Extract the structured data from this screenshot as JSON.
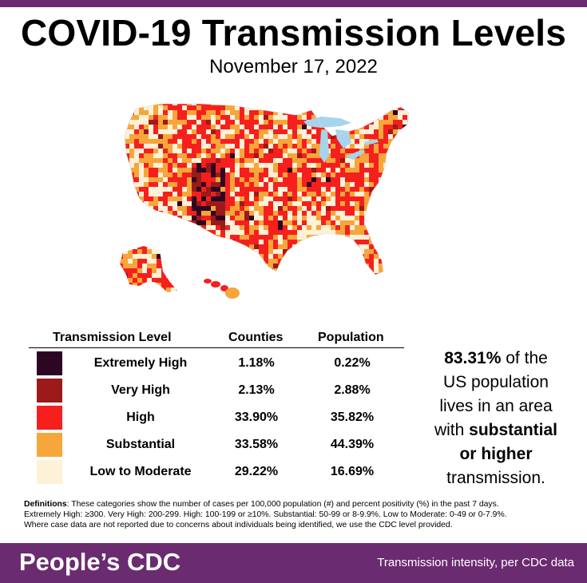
{
  "header": {
    "title": "COVID-19 Transmission Levels",
    "date": "November 17, 2022"
  },
  "colors": {
    "brand_purple": "#6a2b70",
    "extremely_high": "#2d0624",
    "very_high": "#9c1a1a",
    "high": "#f5201e",
    "substantial": "#f6a63a",
    "low_to_moderate": "#fdf1d7",
    "great_lakes": "#a6d4ec"
  },
  "legend": {
    "col_level": "Transmission Level",
    "col_counties": "Counties",
    "col_population": "Population",
    "rows": [
      {
        "level": "Extremely High",
        "counties": "1.18%",
        "population": "0.22%",
        "color": "#2d0624"
      },
      {
        "level": "Very High",
        "counties": "2.13%",
        "population": "2.88%",
        "color": "#9c1a1a"
      },
      {
        "level": "High",
        "counties": "33.90%",
        "population": "35.82%",
        "color": "#f5201e"
      },
      {
        "level": "Substantial",
        "counties": "33.58%",
        "population": "44.39%",
        "color": "#f6a63a"
      },
      {
        "level": "Low to Moderate",
        "counties": "29.22%",
        "population": "16.69%",
        "color": "#fdf1d7"
      }
    ]
  },
  "callout": {
    "percent": "83.31%",
    "line1_rest": " of the",
    "line2": "US population",
    "line3": "lives in an area",
    "line4_pre": "with ",
    "line4_bold": "substantial",
    "line5_bold": "or higher",
    "line6": "transmission."
  },
  "definitions": {
    "label": "Definitions",
    "text1": ": These categories show the number of cases per 100,000 population (#) and percent positivity (%) in the past 7 days.",
    "text2": "Extremely High: ≥300. Very High: 200-299. High: 100-199 or ≥10%. Substantial: 50-99 or 8-9.9%. Low to Moderate: 0-49 or 0-7.9%.",
    "text3": "Where case data are not reported due to concerns about individuals being identified, we use the CDC level provided."
  },
  "footer": {
    "brand": "People’s CDC",
    "tagline": "Transmission intensity, per CDC data"
  }
}
